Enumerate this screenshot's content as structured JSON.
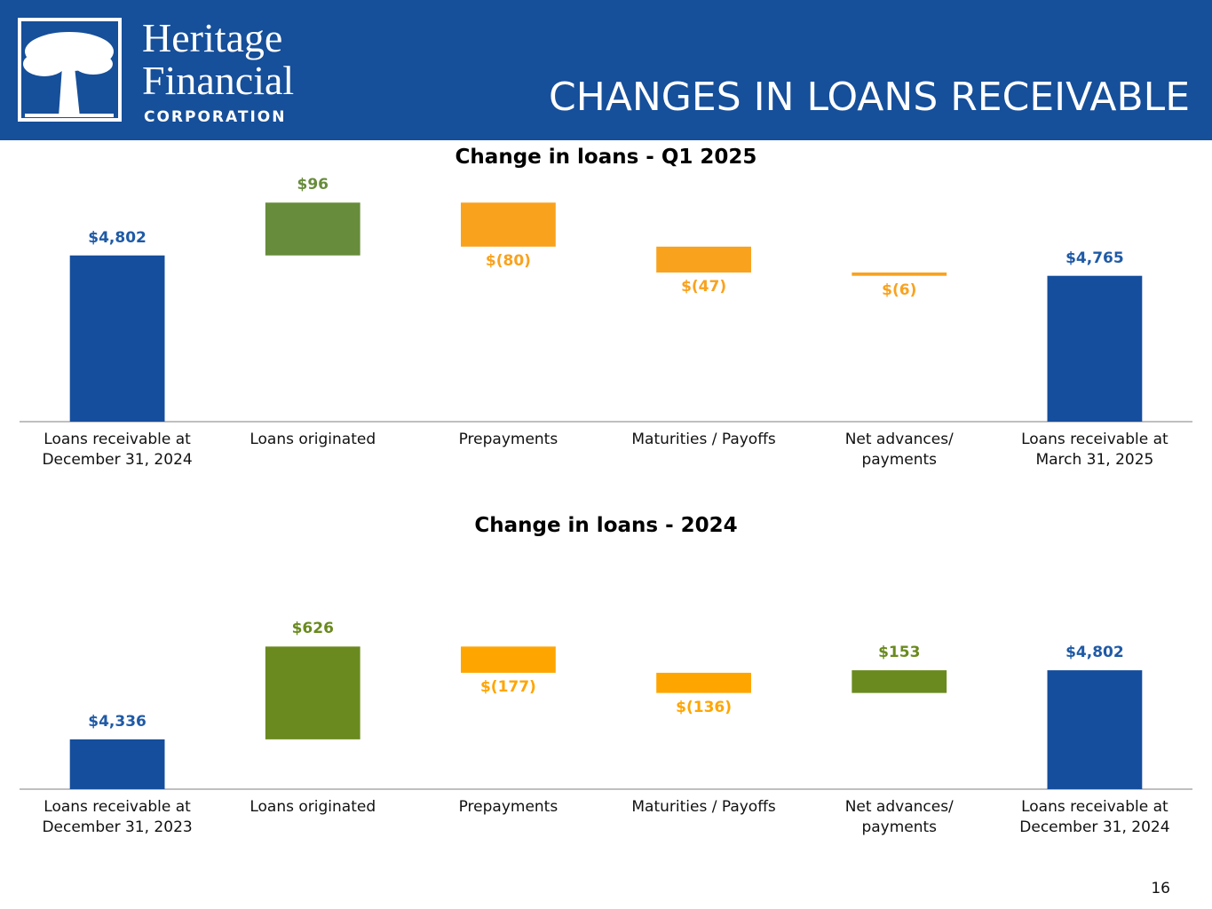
{
  "header": {
    "logo_line1": "Heritage",
    "logo_line2": "Financial",
    "logo_line3": "CORPORATION",
    "title": "CHANGES IN LOANS RECEIVABLE",
    "page_number": "16"
  },
  "chart_data": [
    {
      "type": "waterfall",
      "title": "Change in loans - Q1 2025",
      "categories": [
        "Loans receivable at\nDecember 31, 2024",
        "Loans originated",
        "Prepayments",
        "Maturities / Payoffs",
        "Net advances/\npayments",
        "Loans receivable at\nMarch 31, 2025"
      ],
      "values": [
        4802,
        96,
        -80,
        -47,
        -6,
        4765
      ],
      "value_labels": [
        "$4,802",
        "$96",
        "$(80)",
        "$(47)",
        "$(6)",
        "$4,765"
      ],
      "total_color": "#154e9c",
      "increase_color": "#678c3b",
      "decrease_color": "#f9a21e",
      "ylim": [
        4500,
        4900
      ]
    },
    {
      "type": "waterfall",
      "title": "Change in loans -  2024",
      "categories": [
        "Loans receivable at\nDecember 31, 2023",
        "Loans originated",
        "Prepayments",
        "Maturities / Payoffs",
        "Net advances/\npayments",
        "Loans receivable at\nDecember 31, 2024"
      ],
      "values": [
        4336,
        626,
        -177,
        -136,
        153,
        4802
      ],
      "value_labels": [
        "$4,336",
        "$626",
        "$(177)",
        "$(136)",
        "$153",
        "$4,802"
      ],
      "total_color": "#154e9c",
      "increase_color": "#6a8a1f",
      "decrease_color": "#ffa500",
      "ylim": [
        4000,
        5000
      ]
    }
  ]
}
